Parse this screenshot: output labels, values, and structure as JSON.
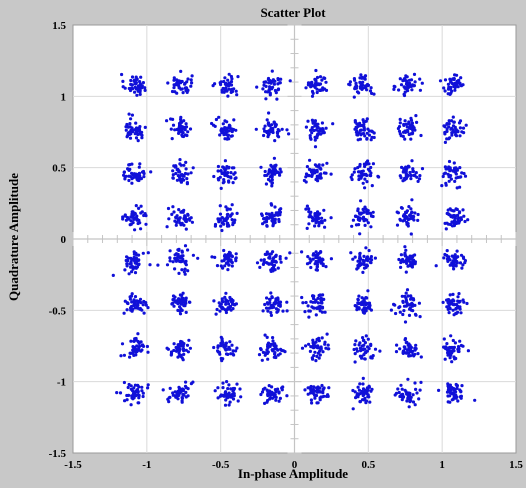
{
  "chart_data": {
    "type": "scatter",
    "title": "Scatter Plot",
    "xlabel": "In-phase Amplitude",
    "ylabel": "Quadrature Amplitude",
    "xlim": [
      -1.5,
      1.5
    ],
    "ylim": [
      -1.5,
      1.5
    ],
    "x_ticks": [
      "-1.5",
      "-1",
      "-0.5",
      "0",
      "0.5",
      "1",
      "1.5"
    ],
    "y_ticks": [
      "1.5",
      "1",
      "0.5",
      "0",
      "-0.5",
      "-1",
      "-1.5"
    ],
    "grid": true,
    "point_color": "#1010d8",
    "plot_background": "#ffffff",
    "figure_background": "#c8c8c8",
    "series": [
      {
        "cluster_centers_x": [
          -1.08,
          -0.77,
          -0.46,
          -0.15,
          0.15,
          0.46,
          0.77,
          1.08
        ],
        "cluster_centers_y": [
          1.08,
          0.77,
          0.46,
          0.15,
          -0.15,
          -0.46,
          -0.77,
          -1.08
        ],
        "cluster_spread": 0.05,
        "points_per_cluster": 45
      }
    ]
  }
}
